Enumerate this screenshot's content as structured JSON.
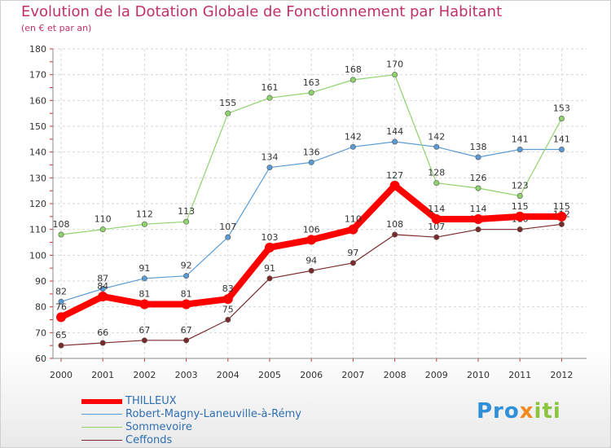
{
  "chart_data": {
    "type": "line",
    "title": "Evolution de la Dotation Globale de Fonctionnement par Habitant",
    "subtitle": "(en € et par an)",
    "xlabel": "",
    "ylabel": "",
    "x": [
      "2000",
      "2001",
      "2002",
      "2003",
      "2004",
      "2005",
      "2006",
      "2007",
      "2008",
      "2009",
      "2010",
      "2011",
      "2012"
    ],
    "ylim": [
      60,
      180
    ],
    "yticks": [
      60,
      70,
      80,
      90,
      100,
      110,
      120,
      130,
      140,
      150,
      160,
      170,
      180
    ],
    "grid": true,
    "legend_position": "bottom-left",
    "series": [
      {
        "name": "THILLEUX",
        "color": "#ff0000",
        "emphasis": true,
        "values": [
          76,
          84,
          81,
          81,
          83,
          103,
          106,
          110,
          127,
          114,
          114,
          115,
          115
        ]
      },
      {
        "name": "Robert-Magny-Laneuville-à-Rémy",
        "color": "#5b9bd5",
        "values": [
          82,
          87,
          91,
          92,
          107,
          134,
          136,
          142,
          144,
          142,
          138,
          141,
          141
        ]
      },
      {
        "name": "Sommevoire",
        "color": "#8fd36b",
        "values": [
          108,
          110,
          112,
          113,
          155,
          161,
          163,
          168,
          170,
          128,
          126,
          123,
          153
        ]
      },
      {
        "name": "Ceffonds",
        "color": "#7a2a2a",
        "values": [
          65,
          66,
          67,
          67,
          75,
          91,
          94,
          97,
          108,
          107,
          110,
          110,
          112
        ]
      }
    ]
  },
  "logo": {
    "p1": "Pro",
    "p2": "x",
    "p3": "iti"
  }
}
